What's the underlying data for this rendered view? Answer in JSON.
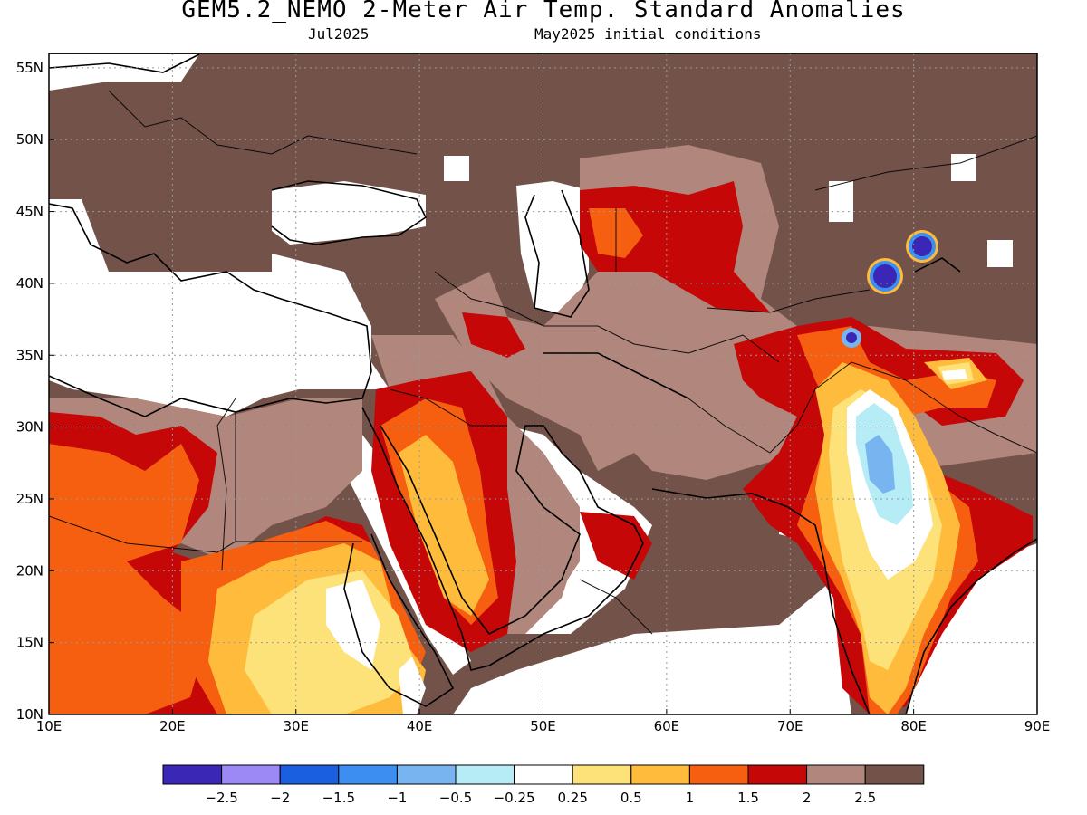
{
  "title": "GEM5.2_NEMO 2-Meter Air Temp. Standard Anomalies",
  "subtitle_left": "Jul2025",
  "subtitle_right": "May2025 initial conditions",
  "map": {
    "lon_range": [
      10,
      90
    ],
    "lat_range": [
      10,
      56
    ],
    "lon_ticks": [
      "10E",
      "20E",
      "30E",
      "40E",
      "50E",
      "60E",
      "70E",
      "80E",
      "90E"
    ],
    "lat_ticks": [
      "10N",
      "15N",
      "20N",
      "25N",
      "30N",
      "35N",
      "40N",
      "45N",
      "50N",
      "55N"
    ],
    "grid": "dotted"
  },
  "legend": {
    "colors": [
      "#3a27b5",
      "#9d89f5",
      "#1a5fe0",
      "#3c8ef0",
      "#78b4f0",
      "#b5ecf5",
      "#ffffff",
      "#fde27a",
      "#ffbc3c",
      "#f55f0f",
      "#c50707",
      "#b1867c",
      "#73524a"
    ],
    "labels": [
      "−2.5",
      "−2",
      "−1.5",
      "−1",
      "−0.5",
      "−0.25",
      "0.25",
      "0.5",
      "1",
      "1.5",
      "2",
      "2.5"
    ]
  }
}
